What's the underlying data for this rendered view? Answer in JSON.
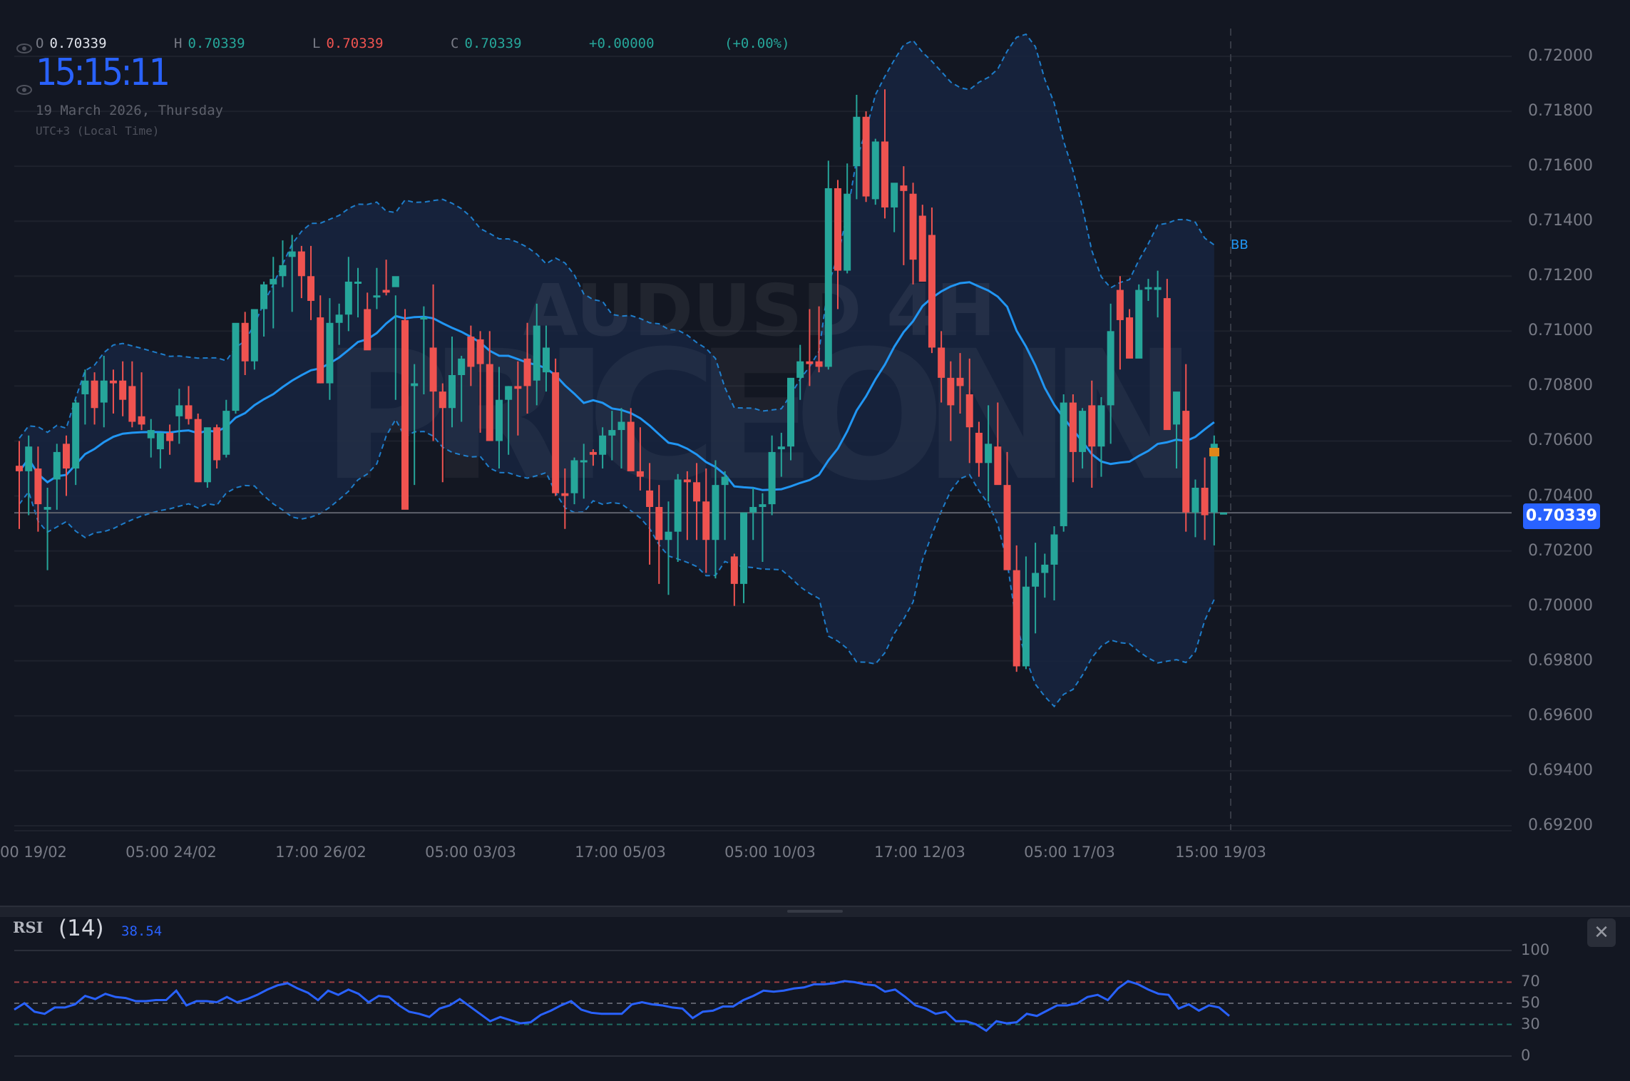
{
  "header": {
    "ohlc": [
      {
        "key": "O",
        "value": "0.70339",
        "color": "#e0e3eb",
        "x": 50
      },
      {
        "key": "H",
        "value": "0.70339",
        "color": "#26a69a",
        "x": 244
      },
      {
        "key": "L",
        "value": "0.70339",
        "color": "#ef5350",
        "x": 438
      },
      {
        "key": "C",
        "value": "0.70339",
        "color": "#26a69a",
        "x": 632
      }
    ],
    "change": "+0.00000",
    "change_pct": "(+0.00%)",
    "clock": "15:15:11",
    "date": "19 March 2026, Thursday",
    "timezone": "UTC+3 (Local Time)"
  },
  "watermark": {
    "symbol": "AUDUSD 4H",
    "brand": "PRICEONN"
  },
  "indicator_label": "BB",
  "last_price": "0.70339",
  "colors": {
    "bg": "#131722",
    "up": "#26a69a",
    "down": "#ef5350",
    "bb_line": "#2196f3",
    "bb_fill": "#172540",
    "rsi_line": "#2962ff",
    "accent": "#2962ff"
  },
  "rsi": {
    "title": "RSI",
    "param": "(14)",
    "value": "38.54",
    "close_label": "✕",
    "levels": [
      "100",
      "70",
      "50",
      "30",
      "0"
    ]
  },
  "chart_data": [
    {
      "type": "candlestick",
      "title": "AUDUSD 4H",
      "xlabel": "",
      "ylabel": "",
      "ylim": [
        0.692,
        0.7205
      ],
      "grid": true,
      "legend_position": "top-left",
      "y_ticks": [
        "0.72000",
        "0.71800",
        "0.71600",
        "0.71400",
        "0.71200",
        "0.71000",
        "0.70800",
        "0.70600",
        "0.70400",
        "0.70200",
        "0.70000",
        "0.69800",
        "0.69600",
        "0.69400",
        "0.69200"
      ],
      "x_ticks": [
        "00 19/02",
        "05:00 24/02",
        "17:00 26/02",
        "05:00 03/03",
        "17:00 05/03",
        "05:00 10/03",
        "17:00 12/03",
        "05:00 17/03",
        "15:00 19/03"
      ],
      "series": [
        {
          "name": "price",
          "ohlc": [
            [
              0.7051,
              0.706,
              0.7028,
              0.7049
            ],
            [
              0.7049,
              0.7062,
              0.7033,
              0.7058
            ],
            [
              0.705,
              0.7058,
              0.7027,
              0.7037
            ],
            [
              0.7035,
              0.7043,
              0.7013,
              0.7036
            ],
            [
              0.7046,
              0.7059,
              0.7035,
              0.7056
            ],
            [
              0.7059,
              0.7062,
              0.704,
              0.705
            ],
            [
              0.705,
              0.7075,
              0.7044,
              0.7074
            ],
            [
              0.7077,
              0.7086,
              0.7066,
              0.7082
            ],
            [
              0.7082,
              0.7085,
              0.7066,
              0.7072
            ],
            [
              0.7074,
              0.7091,
              0.7065,
              0.7082
            ],
            [
              0.7082,
              0.7086,
              0.707,
              0.7081
            ],
            [
              0.7082,
              0.7089,
              0.7069,
              0.7075
            ],
            [
              0.708,
              0.7089,
              0.7065,
              0.7067
            ],
            [
              0.7069,
              0.7085,
              0.7064,
              0.7066
            ],
            [
              0.7061,
              0.7068,
              0.7054,
              0.7064
            ],
            [
              0.7057,
              0.7062,
              0.705,
              0.7063
            ],
            [
              0.7063,
              0.7066,
              0.7055,
              0.706
            ],
            [
              0.7069,
              0.7079,
              0.7059,
              0.7073
            ],
            [
              0.7073,
              0.708,
              0.7066,
              0.7068
            ],
            [
              0.7068,
              0.707,
              0.7045,
              0.7045
            ],
            [
              0.7045,
              0.7062,
              0.7043,
              0.7065
            ],
            [
              0.7065,
              0.7066,
              0.705,
              0.7053
            ],
            [
              0.7055,
              0.7075,
              0.7054,
              0.7071
            ],
            [
              0.7071,
              0.7098,
              0.707,
              0.7103
            ],
            [
              0.7103,
              0.7107,
              0.7084,
              0.7089
            ],
            [
              0.7089,
              0.7102,
              0.7086,
              0.7108
            ],
            [
              0.7108,
              0.7118,
              0.7098,
              0.7117
            ],
            [
              0.7117,
              0.7127,
              0.7101,
              0.7119
            ],
            [
              0.712,
              0.7133,
              0.7116,
              0.7124
            ],
            [
              0.7127,
              0.7135,
              0.7107,
              0.7129
            ],
            [
              0.7129,
              0.7131,
              0.7112,
              0.712
            ],
            [
              0.712,
              0.7131,
              0.7104,
              0.7111
            ],
            [
              0.7105,
              0.7113,
              0.7081,
              0.7081
            ],
            [
              0.7081,
              0.7112,
              0.7075,
              0.7103
            ],
            [
              0.7103,
              0.711,
              0.7095,
              0.7106
            ],
            [
              0.7106,
              0.7127,
              0.71,
              0.7118
            ],
            [
              0.7118,
              0.7123,
              0.7105,
              0.7118
            ],
            [
              0.7108,
              0.7114,
              0.7095,
              0.7093
            ],
            [
              0.7113,
              0.7123,
              0.7108,
              0.7113
            ],
            [
              0.7115,
              0.7126,
              0.7113,
              0.7114
            ],
            [
              0.7116,
              0.7113,
              0.7075,
              0.712
            ],
            [
              0.7104,
              0.7108,
              0.7036,
              0.7035
            ],
            [
              0.708,
              0.7088,
              0.7044,
              0.7081
            ],
            [
              0.7105,
              0.7109,
              0.7077,
              0.7105
            ],
            [
              0.7094,
              0.7117,
              0.706,
              0.7078
            ],
            [
              0.7078,
              0.7081,
              0.7045,
              0.7072
            ],
            [
              0.7072,
              0.7098,
              0.7065,
              0.7084
            ],
            [
              0.7084,
              0.7091,
              0.7067,
              0.709
            ],
            [
              0.7098,
              0.7102,
              0.708,
              0.7087
            ],
            [
              0.7097,
              0.71,
              0.7063,
              0.7088
            ],
            [
              0.7088,
              0.71,
              0.706,
              0.706
            ],
            [
              0.706,
              0.7087,
              0.705,
              0.7075
            ],
            [
              0.7075,
              0.708,
              0.7055,
              0.708
            ],
            [
              0.708,
              0.7089,
              0.7062,
              0.7079
            ],
            [
              0.709,
              0.7103,
              0.707,
              0.708
            ],
            [
              0.7082,
              0.711,
              0.7073,
              0.7102
            ],
            [
              0.7085,
              0.7102,
              0.7078,
              0.7094
            ],
            [
              0.7085,
              0.709,
              0.704,
              0.7041
            ],
            [
              0.7041,
              0.705,
              0.7028,
              0.704
            ],
            [
              0.7041,
              0.7054,
              0.7037,
              0.7053
            ],
            [
              0.7053,
              0.7059,
              0.7039,
              0.7053
            ],
            [
              0.7056,
              0.7057,
              0.7051,
              0.7055
            ],
            [
              0.7055,
              0.7065,
              0.705,
              0.7062
            ],
            [
              0.7062,
              0.7071,
              0.7053,
              0.7064
            ],
            [
              0.7064,
              0.7072,
              0.705,
              0.7067
            ],
            [
              0.7067,
              0.7072,
              0.7051,
              0.7049
            ],
            [
              0.7049,
              0.7065,
              0.7042,
              0.7047
            ],
            [
              0.7042,
              0.7052,
              0.7015,
              0.7036
            ],
            [
              0.7036,
              0.7044,
              0.7008,
              0.7024
            ],
            [
              0.7024,
              0.7038,
              0.7004,
              0.7027
            ],
            [
              0.7027,
              0.7048,
              0.7016,
              0.7046
            ],
            [
              0.7046,
              0.7049,
              0.7024,
              0.7045
            ],
            [
              0.7045,
              0.7052,
              0.7024,
              0.7038
            ],
            [
              0.7038,
              0.705,
              0.7012,
              0.7024
            ],
            [
              0.7024,
              0.7053,
              0.701,
              0.7044
            ],
            [
              0.7044,
              0.7049,
              0.7024,
              0.7047
            ],
            [
              0.7018,
              0.7019,
              0.7,
              0.7008
            ],
            [
              0.7008,
              0.7033,
              0.7001,
              0.7034
            ],
            [
              0.7034,
              0.7043,
              0.7024,
              0.7036
            ],
            [
              0.7036,
              0.7041,
              0.7016,
              0.7037
            ],
            [
              0.7037,
              0.7062,
              0.7033,
              0.7056
            ],
            [
              0.7057,
              0.7063,
              0.7047,
              0.7058
            ],
            [
              0.7058,
              0.7079,
              0.7053,
              0.7083
            ],
            [
              0.7083,
              0.7095,
              0.7075,
              0.7089
            ],
            [
              0.7089,
              0.7108,
              0.708,
              0.7088
            ],
            [
              0.7089,
              0.7109,
              0.7085,
              0.7087
            ],
            [
              0.7087,
              0.7162,
              0.7086,
              0.7152
            ],
            [
              0.7152,
              0.7155,
              0.7108,
              0.7122
            ],
            [
              0.7122,
              0.7161,
              0.7121,
              0.715
            ],
            [
              0.716,
              0.7186,
              0.7148,
              0.7178
            ],
            [
              0.7178,
              0.718,
              0.7147,
              0.7149
            ],
            [
              0.7148,
              0.717,
              0.7146,
              0.7169
            ],
            [
              0.7169,
              0.7188,
              0.7141,
              0.7145
            ],
            [
              0.7145,
              0.7151,
              0.7136,
              0.7154
            ],
            [
              0.7153,
              0.716,
              0.7124,
              0.7151
            ],
            [
              0.715,
              0.7154,
              0.7117,
              0.7126
            ],
            [
              0.7142,
              0.7146,
              0.7119,
              0.7118
            ],
            [
              0.7135,
              0.7145,
              0.7092,
              0.7094
            ],
            [
              0.7094,
              0.71,
              0.7074,
              0.7083
            ],
            [
              0.7083,
              0.7089,
              0.706,
              0.7073
            ],
            [
              0.7083,
              0.7092,
              0.707,
              0.708
            ],
            [
              0.7077,
              0.709,
              0.7052,
              0.7065
            ],
            [
              0.7063,
              0.7067,
              0.7047,
              0.7052
            ],
            [
              0.7052,
              0.7073,
              0.7038,
              0.7059
            ],
            [
              0.7058,
              0.7074,
              0.7052,
              0.7044
            ],
            [
              0.7044,
              0.7056,
              0.7017,
              0.7013
            ],
            [
              0.7013,
              0.7022,
              0.6976,
              0.6978
            ],
            [
              0.6978,
              0.7018,
              0.6977,
              0.7007
            ],
            [
              0.7007,
              0.7023,
              0.699,
              0.7012
            ],
            [
              0.7012,
              0.7019,
              0.7003,
              0.7015
            ],
            [
              0.7015,
              0.7029,
              0.7002,
              0.7026
            ],
            [
              0.7029,
              0.7077,
              0.7027,
              0.7074
            ],
            [
              0.7074,
              0.7077,
              0.7045,
              0.7056
            ],
            [
              0.7056,
              0.7072,
              0.705,
              0.7071
            ],
            [
              0.7073,
              0.7082,
              0.7043,
              0.7058
            ],
            [
              0.7058,
              0.7076,
              0.7047,
              0.7073
            ],
            [
              0.7073,
              0.711,
              0.7059,
              0.71
            ],
            [
              0.7115,
              0.712,
              0.7086,
              0.7104
            ],
            [
              0.7105,
              0.7108,
              0.7097,
              0.709
            ],
            [
              0.709,
              0.7117,
              0.7093,
              0.7115
            ],
            [
              0.7116,
              0.7119,
              0.7111,
              0.7116
            ],
            [
              0.7115,
              0.7122,
              0.7105,
              0.7116
            ],
            [
              0.7112,
              0.7119,
              0.7072,
              0.7064
            ],
            [
              0.7066,
              0.7076,
              0.705,
              0.7078
            ],
            [
              0.7071,
              0.7088,
              0.7027,
              0.7034
            ],
            [
              0.7034,
              0.7046,
              0.7025,
              0.7043
            ],
            [
              0.7043,
              0.7054,
              0.7024,
              0.7033
            ],
            [
              0.7034,
              0.7062,
              0.7022,
              0.7059
            ],
            [
              0.7034,
              0.7034,
              0.7034,
              0.7034
            ]
          ]
        },
        {
          "name": "bb_basis",
          "values": []
        },
        {
          "name": "bb_upper",
          "values": []
        },
        {
          "name": "bb_lower",
          "values": []
        }
      ]
    },
    {
      "type": "line",
      "title": "RSI (14)",
      "ylim": [
        0,
        100
      ],
      "levels": [
        70,
        50,
        30
      ],
      "series": [
        {
          "name": "RSI",
          "values": [
            44,
            50,
            42,
            40,
            46,
            46,
            49,
            57,
            54,
            59,
            56,
            55,
            52,
            52,
            53,
            53,
            62,
            48,
            52,
            52,
            51,
            56,
            51,
            54,
            58,
            63,
            67,
            69,
            64,
            60,
            53,
            62,
            58,
            63,
            59,
            51,
            57,
            56,
            48,
            42,
            40,
            37,
            45,
            48,
            54,
            47,
            40,
            33,
            37,
            34,
            31,
            32,
            39,
            43,
            48,
            52,
            44,
            41,
            40,
            40,
            40,
            49,
            51,
            49,
            48,
            46,
            45,
            36,
            42,
            43,
            47,
            47,
            53,
            57,
            62,
            61,
            62,
            64,
            65,
            68,
            68,
            69,
            71,
            70,
            68,
            67,
            61,
            63,
            56,
            48,
            45,
            40,
            42,
            33,
            33,
            30,
            24,
            33,
            31,
            32,
            40,
            38,
            43,
            48,
            48,
            50,
            56,
            58,
            53,
            64,
            71,
            68,
            63,
            59,
            58,
            45,
            49,
            43,
            48,
            46,
            38
          ]
        }
      ]
    }
  ]
}
